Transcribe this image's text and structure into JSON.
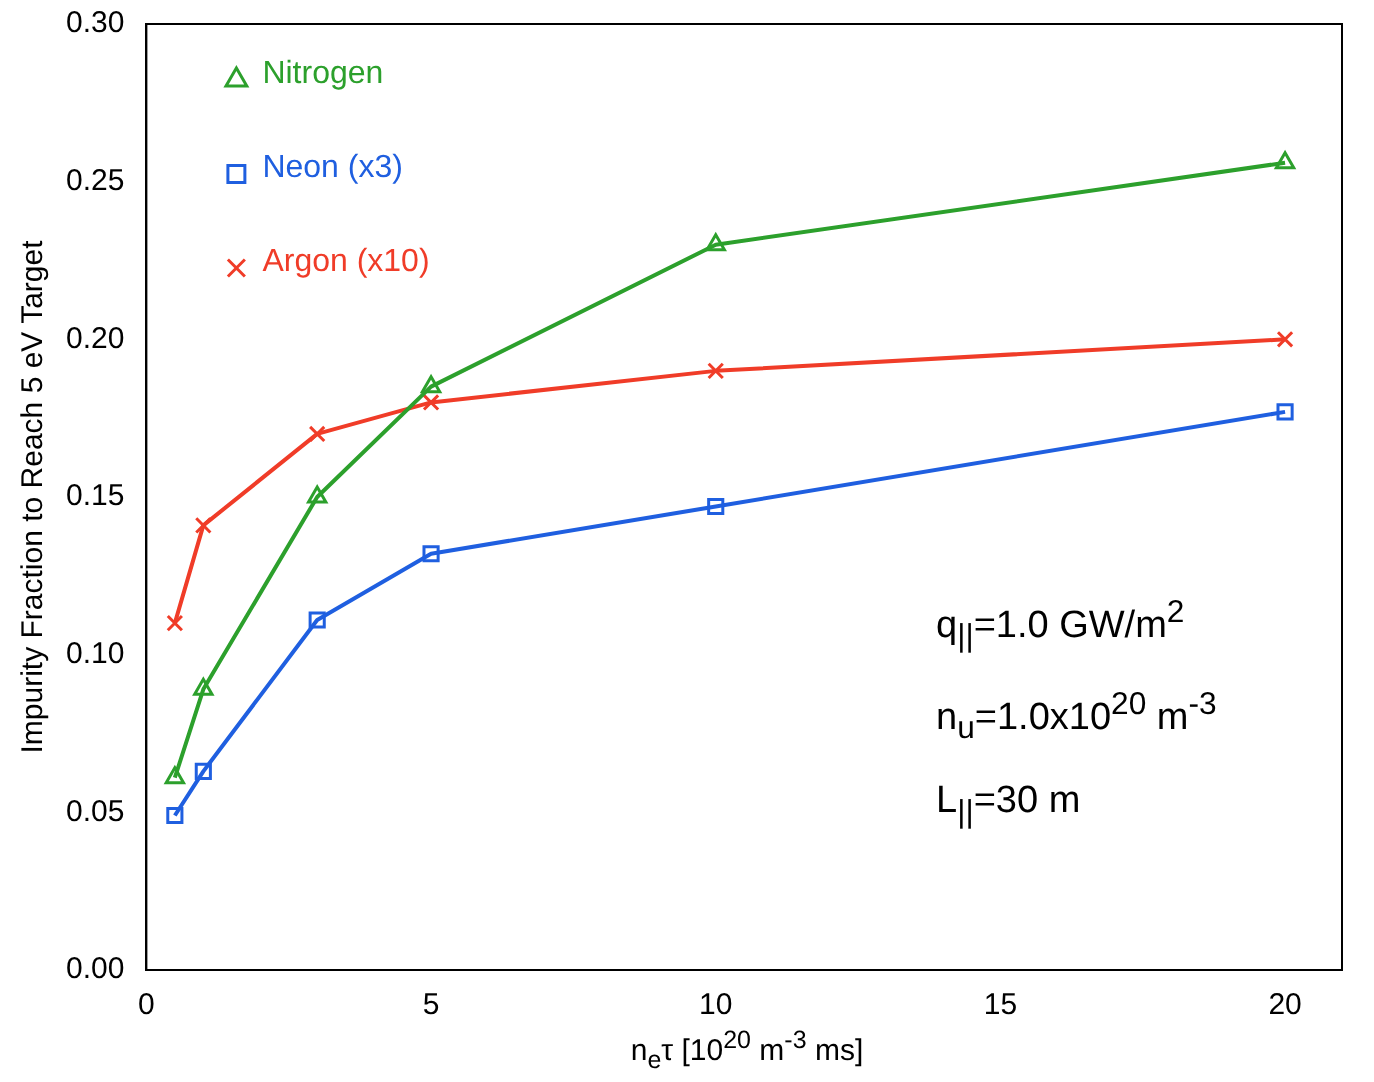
{
  "chart_data": {
    "type": "line",
    "xlabel": "n$_{e}$τ [10$^{20}$ m$^{-3}$ ms]",
    "ylabel": "Impurity Fraction to Reach 5 eV Target",
    "x": [
      0.5,
      1,
      3,
      5,
      10,
      20
    ],
    "series": [
      {
        "name": "Nitrogen",
        "color": "#2ca02c",
        "marker": "triangle",
        "values": [
          0.061,
          0.089,
          0.15,
          0.185,
          0.23,
          0.256
        ]
      },
      {
        "name": "Neon (x3)",
        "color": "#1f5fe0",
        "marker": "square",
        "values": [
          0.049,
          0.063,
          0.111,
          0.132,
          0.147,
          0.177
        ]
      },
      {
        "name": "Argon (x10)",
        "color": "#f03c28",
        "marker": "cross",
        "values": [
          0.11,
          0.141,
          0.17,
          0.18,
          0.19,
          0.2
        ]
      }
    ],
    "xlim": [
      0,
      21
    ],
    "xticks": [
      0,
      5,
      10,
      15,
      20
    ],
    "ylim": [
      0,
      0.3
    ],
    "yticks": [
      {
        "value": 0,
        "label": "0.00"
      },
      0.05,
      {
        "value": 0.1,
        "label": "0.10"
      },
      0.15,
      {
        "value": 0.2,
        "label": "0.20"
      },
      0.25,
      {
        "value": 0.3,
        "label": "0.30"
      }
    ],
    "grid": false,
    "legend": "top left",
    "line_style": "solid",
    "annotations": [
      "q$_{||}$=1.0 GW/m$^{2}$",
      "n$_{u}$=1.0x10$^{20}$ m$^{-3}$",
      "L$_{||}$=30 m"
    ]
  }
}
